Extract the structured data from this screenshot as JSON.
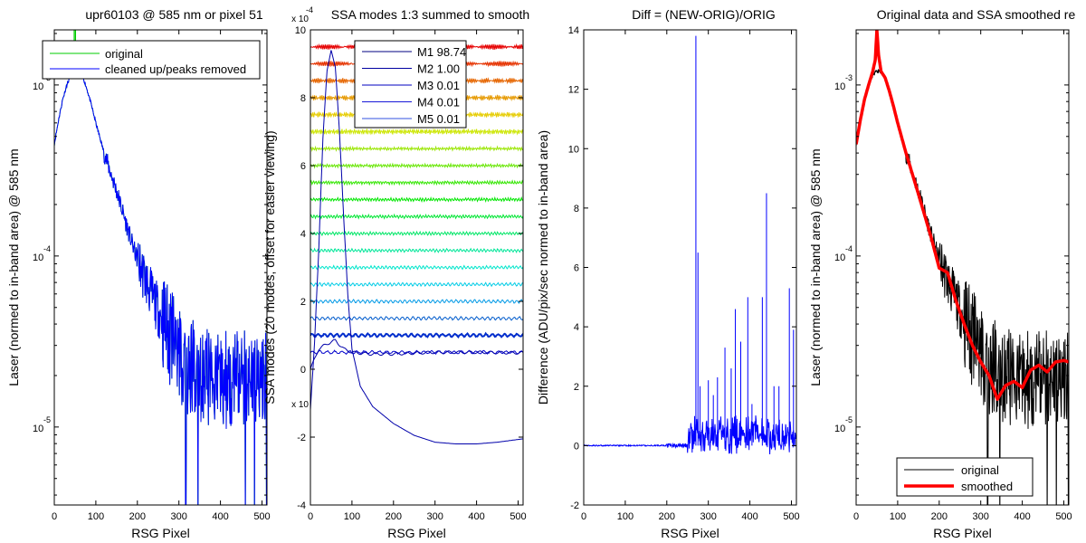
{
  "chart_data": [
    {
      "type": "line",
      "title": "upr60103 @ 585 nm or pixel 51",
      "xlabel": "RSG Pixel",
      "ylabel": "Laser (normed to in-band area) @ 585 nm",
      "xlim": [
        0,
        512
      ],
      "ylim": [
        3.5e-06,
        0.0021
      ],
      "yscale": "log",
      "xticks": [
        0,
        100,
        200,
        300,
        400,
        500
      ],
      "xtick_labels": [
        "0",
        "100",
        "200",
        "300",
        "400",
        "500"
      ],
      "yticks": [
        1e-05,
        0.0001,
        0.001
      ],
      "ytick_labels": [
        [
          "10",
          "-5"
        ],
        [
          "10",
          "-4"
        ],
        [
          "10",
          "-3"
        ]
      ],
      "legend": {
        "position": "top",
        "entries": [
          "original",
          "cleaned up/peaks removed"
        ]
      },
      "colors": {
        "original": "#00cc00",
        "cleaned": "#0000ff"
      },
      "grid": false,
      "series": [
        {
          "name": "original",
          "x": [
            0,
            10,
            20,
            30,
            40,
            50,
            60,
            70,
            80,
            90,
            100,
            120,
            150,
            180,
            200,
            240,
            280,
            320,
            360,
            400,
            440,
            480,
            512
          ],
          "values": [
            0.00045,
            0.00062,
            0.00082,
            0.001,
            0.00114,
            0.0012,
            0.0012,
            0.0011,
            0.00092,
            0.00075,
            0.0006,
            0.0004,
            0.00024,
            0.000135,
            9.5e-05,
            5.5e-05,
            3.3e-05,
            2.3e-05,
            2e-05,
            1.9e-05,
            1.9e-05,
            2e-05,
            2.1e-05
          ]
        },
        {
          "name": "cleaned up/peaks removed",
          "x": [
            0,
            10,
            20,
            30,
            40,
            50,
            60,
            70,
            80,
            90,
            100,
            120,
            150,
            180,
            200,
            240,
            280,
            320,
            360,
            400,
            440,
            480,
            512
          ],
          "values": [
            0.00045,
            0.00062,
            0.00082,
            0.001,
            0.00114,
            0.0012,
            0.0012,
            0.0011,
            0.00092,
            0.00075,
            0.0006,
            0.0004,
            0.00024,
            0.000135,
            9.5e-05,
            5.5e-05,
            3.3e-05,
            2.3e-05,
            2e-05,
            1.9e-05,
            1.9e-05,
            2e-05,
            2.1e-05
          ]
        }
      ]
    },
    {
      "type": "line",
      "title": "SSA modes 1:3 summed to smooth",
      "xlabel": "RSG Pixel",
      "ylabel": "SSA modes (20 modes, offset for easier viewing)",
      "xlim": [
        0,
        512
      ],
      "ylim": [
        -4,
        10
      ],
      "yscale_label": [
        "x 10",
        "-4"
      ],
      "bottom_scale_label": "x 10",
      "xticks": [
        0,
        100,
        200,
        300,
        400,
        500
      ],
      "xtick_labels": [
        "0",
        "100",
        "200",
        "300",
        "400",
        "500"
      ],
      "yticks": [
        -4,
        -2,
        0,
        2,
        4,
        6,
        8,
        10
      ],
      "ytick_labels": [
        "-4",
        "-2",
        "0",
        "2",
        "4",
        "6",
        "8",
        "10"
      ],
      "legend": {
        "position": "top-right",
        "entries": [
          "M1 98.74",
          "M2 1.00",
          "M3 0.01",
          "M4 0.01",
          "M5 0.01"
        ]
      },
      "mode_offsets": [
        0.5,
        1.0,
        1.5,
        2.0,
        2.5,
        3.0,
        3.5,
        4.0,
        4.5,
        5.0,
        5.5,
        6.0,
        6.5,
        7.0,
        7.5,
        8.0,
        8.5,
        9.0,
        9.5
      ],
      "grid": false,
      "series": [
        {
          "name": "mode 1 (large curve)",
          "x": [
            0,
            10,
            20,
            30,
            40,
            50,
            60,
            70,
            80,
            90,
            100,
            120,
            150,
            200,
            250,
            300,
            350,
            400,
            450,
            512
          ],
          "values": [
            -1.2,
            0.8,
            3.5,
            6.8,
            8.8,
            9.4,
            8.9,
            7.0,
            4.5,
            2.2,
            0.6,
            -0.5,
            -1.1,
            -1.6,
            -1.95,
            -2.15,
            -2.2,
            -2.2,
            -2.15,
            -2.05
          ]
        },
        {
          "name": "mode 2",
          "x": [
            0,
            20,
            40,
            60,
            80,
            100,
            140,
            200,
            300,
            400,
            512
          ],
          "values": [
            0.0,
            0.6,
            0.75,
            0.85,
            0.6,
            0.5,
            0.45,
            0.45,
            0.5,
            0.5,
            0.48
          ]
        }
      ]
    },
    {
      "type": "line",
      "title": "Diff = (NEW-ORIG)/ORIG",
      "xlabel": "RSG Pixel",
      "ylabel": "Difference (ADU/pix/sec normed to in-band area)",
      "xlim": [
        0,
        512
      ],
      "ylim": [
        -2,
        14
      ],
      "xticks": [
        0,
        100,
        200,
        300,
        400,
        500
      ],
      "xtick_labels": [
        "0",
        "100",
        "200",
        "300",
        "400",
        "500"
      ],
      "yticks": [
        -2,
        0,
        2,
        4,
        6,
        8,
        10,
        12,
        14
      ],
      "ytick_labels": [
        "-2",
        "0",
        "2",
        "4",
        "6",
        "8",
        "10",
        "12",
        "14"
      ],
      "grid": false,
      "spikes": {
        "x": [
          270,
          275,
          280,
          300,
          312,
          322,
          340,
          355,
          365,
          378,
          395,
          405,
          430,
          440,
          458,
          470,
          495,
          505
        ],
        "values": [
          13.8,
          6.5,
          2.0,
          2.2,
          1.7,
          2.3,
          3.3,
          2.6,
          4.6,
          3.5,
          5.0,
          1.4,
          5.0,
          8.5,
          2.0,
          2.0,
          5.3,
          3.9
        ]
      },
      "series": [
        {
          "name": "diff",
          "x": [
            0,
            100,
            200,
            240,
            260,
            280,
            300,
            350,
            400,
            450,
            512
          ],
          "values": [
            0.0,
            0.0,
            0.05,
            0.15,
            0.3,
            0.5,
            0.6,
            0.6,
            0.6,
            0.55,
            0.5
          ]
        }
      ]
    },
    {
      "type": "line",
      "title": "Original data and SSA smoothed re",
      "xlabel": "RSG Pixel",
      "ylabel": "Laser (normed to in-band area) @ 585 nm",
      "xlim": [
        0,
        512
      ],
      "ylim": [
        3.5e-06,
        0.0021
      ],
      "yscale": "log",
      "xticks": [
        0,
        100,
        200,
        300,
        400,
        500
      ],
      "xtick_labels": [
        "0",
        "100",
        "200",
        "300",
        "400",
        "500"
      ],
      "yticks": [
        1e-05,
        0.0001,
        0.001
      ],
      "ytick_labels": [
        [
          "10",
          "-5"
        ],
        [
          "10",
          "-4"
        ],
        [
          "10",
          "-3"
        ]
      ],
      "legend": {
        "position": "bottom-right",
        "entries": [
          "original",
          "smoothed"
        ]
      },
      "colors": {
        "original": "#000000",
        "smoothed": "#ff0000"
      },
      "grid": false,
      "series": [
        {
          "name": "original",
          "x": [
            0,
            10,
            20,
            30,
            40,
            50,
            60,
            70,
            80,
            90,
            100,
            120,
            150,
            180,
            200,
            240,
            280,
            320,
            360,
            400,
            440,
            480,
            512
          ],
          "values": [
            0.00045,
            0.00062,
            0.00082,
            0.001,
            0.00114,
            0.0012,
            0.0012,
            0.0011,
            0.00092,
            0.00075,
            0.0006,
            0.0004,
            0.00024,
            0.000135,
            9.5e-05,
            5.5e-05,
            3.3e-05,
            2.3e-05,
            2e-05,
            1.9e-05,
            1.9e-05,
            2e-05,
            2.1e-05
          ]
        },
        {
          "name": "smoothed",
          "x": [
            0,
            10,
            20,
            30,
            40,
            46,
            50,
            54,
            60,
            70,
            80,
            90,
            100,
            120,
            150,
            180,
            200,
            220,
            240,
            260,
            280,
            300,
            320,
            340,
            350,
            360,
            380,
            400,
            420,
            440,
            460,
            480,
            500,
            512
          ],
          "values": [
            0.00045,
            0.00062,
            0.00082,
            0.001,
            0.0012,
            0.0014,
            0.0021,
            0.0015,
            0.0012,
            0.0011,
            0.00092,
            0.00075,
            0.0006,
            0.0004,
            0.00023,
            0.00013,
            8.5e-05,
            8e-05,
            5.5e-05,
            4e-05,
            3e-05,
            2.4e-05,
            2e-05,
            1.45e-05,
            1.6e-05,
            1.75e-05,
            1.85e-05,
            1.7e-05,
            2.15e-05,
            2.3e-05,
            2.1e-05,
            2.4e-05,
            2.45e-05,
            2.4e-05
          ]
        }
      ]
    }
  ]
}
